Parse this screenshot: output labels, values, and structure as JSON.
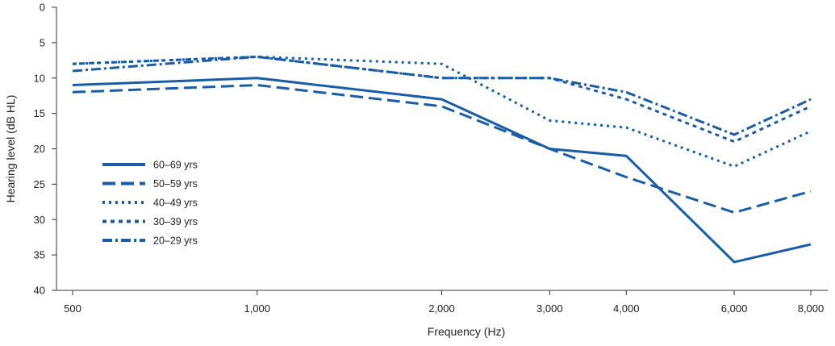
{
  "chart_data": {
    "type": "line",
    "title": "",
    "xlabel": "Frequency (Hz)",
    "ylabel": "Hearing level (dB HL)",
    "x_scale": "log",
    "y_inverted": true,
    "ylim": [
      0,
      40
    ],
    "yticks": [
      0,
      5,
      10,
      15,
      20,
      25,
      30,
      35,
      40
    ],
    "xlim": [
      500,
      8000
    ],
    "x": [
      500,
      1000,
      2000,
      3000,
      4000,
      6000,
      8000
    ],
    "x_tick_labels": [
      "500",
      "1,000",
      "2,000",
      "3,000",
      "4,000",
      "6,000",
      "8,000"
    ],
    "grid": false,
    "legend_position": "left",
    "line_color": "#1a5ca6",
    "series": [
      {
        "name": "60–69 yrs",
        "style": "solid",
        "values": [
          11,
          10,
          13,
          20,
          21,
          36,
          33.5
        ]
      },
      {
        "name": "50–59 yrs",
        "style": "long-dash",
        "values": [
          12,
          11,
          14,
          20,
          24,
          29,
          26
        ]
      },
      {
        "name": "40–49 yrs",
        "style": "dotted",
        "values": [
          8,
          7,
          8,
          16,
          17,
          22.5,
          17.5
        ]
      },
      {
        "name": "30–39 yrs",
        "style": "short-dash",
        "values": [
          8,
          7,
          10,
          10,
          13,
          19,
          14
        ]
      },
      {
        "name": "20–29 yrs",
        "style": "dash-dot",
        "values": [
          9,
          7,
          10,
          10,
          12,
          18,
          13
        ]
      }
    ]
  }
}
